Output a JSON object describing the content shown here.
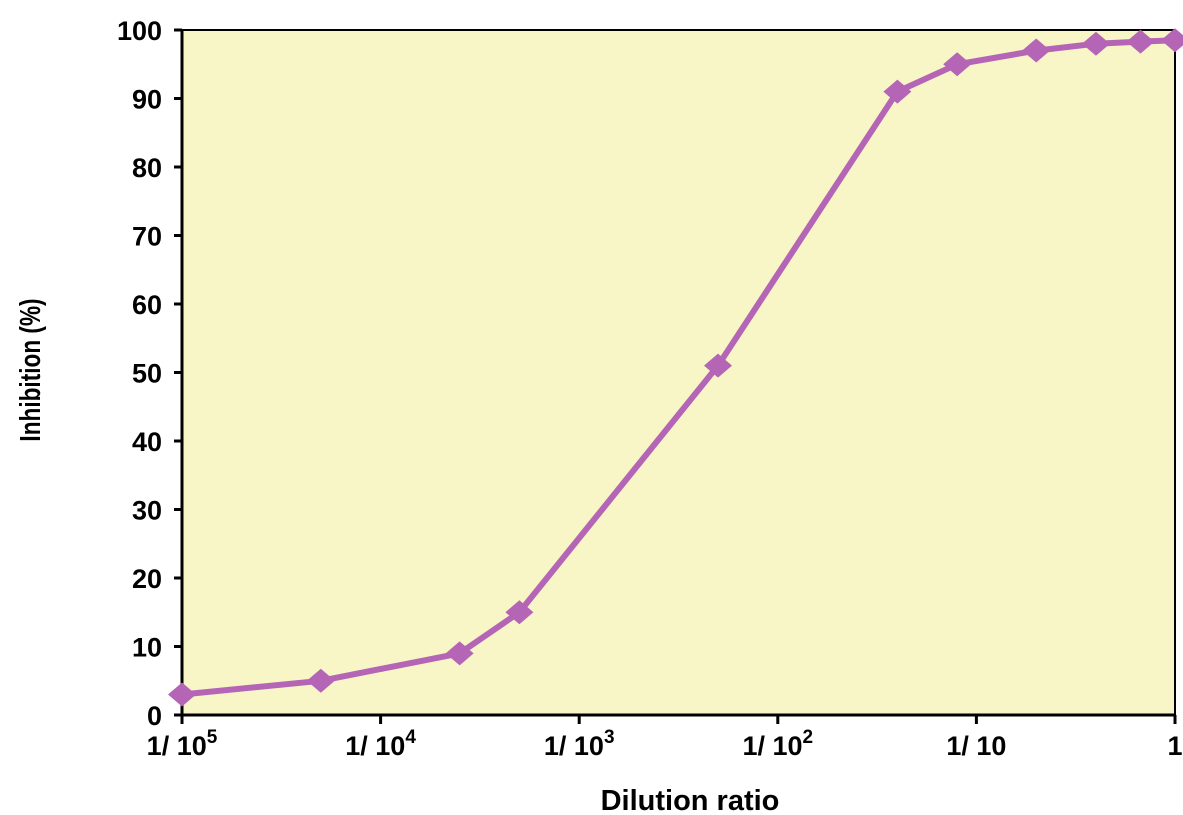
{
  "colors": {
    "plot_background": "#f8f5c6",
    "series": "#b565b5",
    "axis": "#000000"
  },
  "chart_data": {
    "type": "line",
    "x_scale": "log",
    "xlabel": "Dilution ratio",
    "ylabel": "Inhibition (%)",
    "ylim": [
      0,
      100
    ],
    "xlim": [
      1e-05,
      1
    ],
    "y_ticks": [
      "0",
      "10",
      "20",
      "30",
      "40",
      "50",
      "60",
      "70",
      "80",
      "90",
      "100"
    ],
    "x_ticks": [
      {
        "value": 1e-05,
        "base": "1/ 10",
        "exp": "5"
      },
      {
        "value": 0.0001,
        "base": "1/ 10",
        "exp": "4"
      },
      {
        "value": 0.001,
        "base": "1/ 10",
        "exp": "3"
      },
      {
        "value": 0.01,
        "base": "1/ 10",
        "exp": "2"
      },
      {
        "value": 0.1,
        "base": "1/ 10",
        "exp": ""
      },
      {
        "value": 1,
        "base": "1",
        "exp": ""
      }
    ],
    "grid": false,
    "marker": "diamond",
    "series": [
      {
        "x": [
          1e-05,
          5e-05,
          0.00025,
          0.0005,
          0.005,
          0.04,
          0.08,
          0.2,
          0.4,
          0.67,
          1
        ],
        "y": [
          3,
          5,
          9,
          15,
          51,
          91,
          95,
          97,
          98,
          98.3,
          98.5
        ]
      }
    ]
  }
}
